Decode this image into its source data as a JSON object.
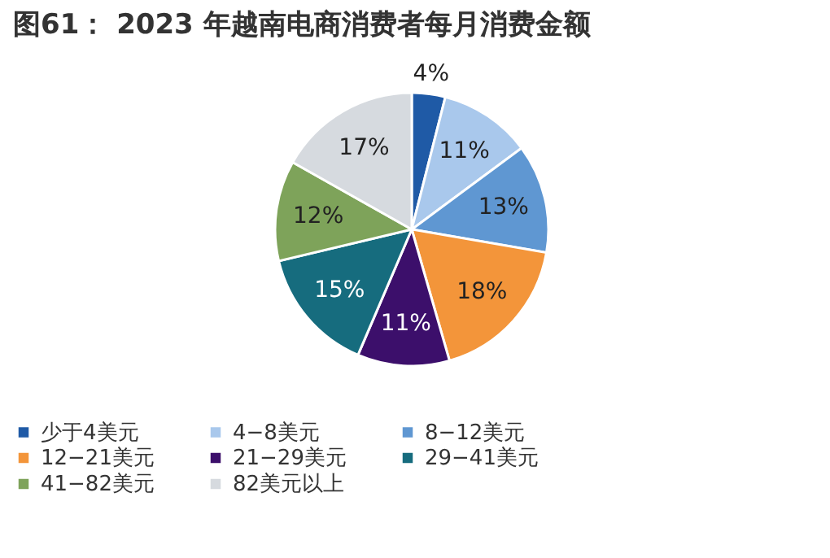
{
  "chart_data": {
    "type": "pie",
    "title": "图61：  2023 年越南电商消费者每月消费金额",
    "categories": [
      "少于4美元",
      "4−8美元",
      "8−12美元",
      "12−21美元",
      "21−29美元",
      "29−41美元",
      "41−82美元",
      "82美元以上"
    ],
    "values": [
      4,
      11,
      13,
      18,
      11,
      15,
      12,
      17
    ],
    "colors": [
      "#1f5aa6",
      "#a9c8ec",
      "#5f97d2",
      "#f3953a",
      "#3c0f6b",
      "#166c7e",
      "#7ea35a",
      "#d6dadf"
    ],
    "value_labels": [
      "4%",
      "11%",
      "13%",
      "18%",
      "11%",
      "15%",
      "12%",
      "17%"
    ],
    "legend": "bottom"
  }
}
